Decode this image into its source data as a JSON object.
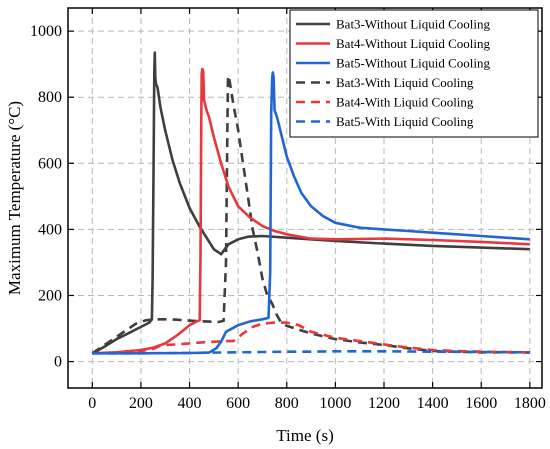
{
  "chart_data": {
    "type": "line",
    "title": "",
    "xlabel": "Time (s)",
    "ylabel": "Maximum Temperature (°C)",
    "xlim": [
      -100,
      1850
    ],
    "ylim": [
      -80,
      1070
    ],
    "xticks": [
      0,
      200,
      400,
      600,
      800,
      1000,
      1200,
      1400,
      1600,
      1800
    ],
    "yticks": [
      0,
      200,
      400,
      600,
      800,
      1000
    ],
    "grid": true,
    "legend_position": "top-right",
    "series": [
      {
        "name": "Bat3-Without Liquid Cooling",
        "color": "#3f3f3f",
        "dash": "solid",
        "points": [
          [
            0,
            25
          ],
          [
            50,
            45
          ],
          [
            100,
            68
          ],
          [
            150,
            86
          ],
          [
            200,
            105
          ],
          [
            235,
            118
          ],
          [
            245,
            128
          ],
          [
            248,
            250
          ],
          [
            252,
            600
          ],
          [
            255,
            880
          ],
          [
            257,
            935
          ],
          [
            259,
            860
          ],
          [
            262,
            840
          ],
          [
            268,
            830
          ],
          [
            280,
            770
          ],
          [
            300,
            700
          ],
          [
            330,
            610
          ],
          [
            360,
            540
          ],
          [
            400,
            465
          ],
          [
            440,
            410
          ],
          [
            470,
            375
          ],
          [
            500,
            340
          ],
          [
            520,
            330
          ],
          [
            530,
            325
          ],
          [
            545,
            340
          ],
          [
            560,
            355
          ],
          [
            600,
            370
          ],
          [
            640,
            378
          ],
          [
            700,
            380
          ],
          [
            800,
            375
          ],
          [
            1000,
            365
          ],
          [
            1200,
            357
          ],
          [
            1400,
            350
          ],
          [
            1600,
            345
          ],
          [
            1800,
            340
          ]
        ]
      },
      {
        "name": "Bat4-Without Liquid Cooling",
        "color": "#e8383d",
        "dash": "solid",
        "points": [
          [
            0,
            25
          ],
          [
            100,
            28
          ],
          [
            200,
            35
          ],
          [
            250,
            42
          ],
          [
            300,
            55
          ],
          [
            350,
            80
          ],
          [
            400,
            110
          ],
          [
            430,
            122
          ],
          [
            442,
            125
          ],
          [
            445,
            320
          ],
          [
            448,
            700
          ],
          [
            450,
            870
          ],
          [
            453,
            885
          ],
          [
            456,
            880
          ],
          [
            460,
            790
          ],
          [
            470,
            760
          ],
          [
            480,
            740
          ],
          [
            500,
            680
          ],
          [
            530,
            600
          ],
          [
            560,
            530
          ],
          [
            600,
            470
          ],
          [
            650,
            435
          ],
          [
            700,
            410
          ],
          [
            750,
            395
          ],
          [
            800,
            385
          ],
          [
            900,
            372
          ],
          [
            1000,
            370
          ],
          [
            1200,
            372
          ],
          [
            1400,
            368
          ],
          [
            1600,
            362
          ],
          [
            1800,
            355
          ]
        ]
      },
      {
        "name": "Bat5-Without Liquid Cooling",
        "color": "#2266d4",
        "dash": "solid",
        "points": [
          [
            0,
            25
          ],
          [
            200,
            25
          ],
          [
            400,
            26
          ],
          [
            480,
            27
          ],
          [
            510,
            40
          ],
          [
            530,
            60
          ],
          [
            550,
            90
          ],
          [
            600,
            110
          ],
          [
            650,
            122
          ],
          [
            700,
            128
          ],
          [
            725,
            132
          ],
          [
            732,
            270
          ],
          [
            736,
            750
          ],
          [
            740,
            860
          ],
          [
            743,
            875
          ],
          [
            746,
            860
          ],
          [
            750,
            760
          ],
          [
            760,
            740
          ],
          [
            780,
            680
          ],
          [
            800,
            620
          ],
          [
            830,
            560
          ],
          [
            860,
            510
          ],
          [
            900,
            470
          ],
          [
            950,
            440
          ],
          [
            1000,
            420
          ],
          [
            1100,
            405
          ],
          [
            1200,
            400
          ],
          [
            1300,
            395
          ],
          [
            1400,
            390
          ],
          [
            1500,
            385
          ],
          [
            1600,
            380
          ],
          [
            1700,
            375
          ],
          [
            1800,
            370
          ]
        ]
      },
      {
        "name": "Bat3-With Liquid Cooling",
        "color": "#3f3f3f",
        "dash": "dashed",
        "points": [
          [
            0,
            25
          ],
          [
            50,
            50
          ],
          [
            100,
            75
          ],
          [
            150,
            100
          ],
          [
            180,
            115
          ],
          [
            220,
            125
          ],
          [
            260,
            128
          ],
          [
            300,
            128
          ],
          [
            340,
            127
          ],
          [
            380,
            125
          ],
          [
            420,
            123
          ],
          [
            480,
            121
          ],
          [
            520,
            120
          ],
          [
            540,
            123
          ],
          [
            550,
            300
          ],
          [
            555,
            650
          ],
          [
            558,
            850
          ],
          [
            560,
            865
          ],
          [
            565,
            850
          ],
          [
            580,
            780
          ],
          [
            600,
            700
          ],
          [
            620,
            600
          ],
          [
            640,
            500
          ],
          [
            660,
            400
          ],
          [
            680,
            330
          ],
          [
            700,
            250
          ],
          [
            720,
            200
          ],
          [
            740,
            175
          ],
          [
            760,
            140
          ],
          [
            775,
            120
          ],
          [
            800,
            108
          ],
          [
            900,
            85
          ],
          [
            1000,
            68
          ],
          [
            1100,
            58
          ],
          [
            1200,
            50
          ],
          [
            1300,
            40
          ],
          [
            1400,
            32
          ],
          [
            1500,
            30
          ],
          [
            1600,
            28
          ],
          [
            1700,
            28
          ],
          [
            1800,
            27
          ]
        ]
      },
      {
        "name": "Bat4-With Liquid Cooling",
        "color": "#e8383d",
        "dash": "dashed",
        "points": [
          [
            0,
            25
          ],
          [
            100,
            27
          ],
          [
            200,
            32
          ],
          [
            250,
            38
          ],
          [
            280,
            48
          ],
          [
            300,
            50
          ],
          [
            350,
            52
          ],
          [
            400,
            55
          ],
          [
            450,
            58
          ],
          [
            500,
            60
          ],
          [
            550,
            62
          ],
          [
            580,
            62
          ],
          [
            620,
            85
          ],
          [
            660,
            105
          ],
          [
            700,
            115
          ],
          [
            750,
            118
          ],
          [
            800,
            118
          ],
          [
            850,
            110
          ],
          [
            900,
            90
          ],
          [
            1000,
            72
          ],
          [
            1100,
            62
          ],
          [
            1200,
            52
          ],
          [
            1300,
            42
          ],
          [
            1400,
            35
          ],
          [
            1500,
            32
          ],
          [
            1600,
            30
          ],
          [
            1700,
            29
          ],
          [
            1800,
            28
          ]
        ]
      },
      {
        "name": "Bat5-With Liquid Cooling",
        "color": "#2266d4",
        "dash": "dashed",
        "points": [
          [
            0,
            25
          ],
          [
            200,
            25
          ],
          [
            400,
            26
          ],
          [
            500,
            27
          ],
          [
            600,
            28
          ],
          [
            700,
            29
          ],
          [
            800,
            30
          ],
          [
            900,
            30
          ],
          [
            1000,
            31
          ],
          [
            1200,
            31
          ],
          [
            1400,
            30
          ],
          [
            1600,
            29
          ],
          [
            1800,
            28
          ]
        ]
      }
    ]
  }
}
